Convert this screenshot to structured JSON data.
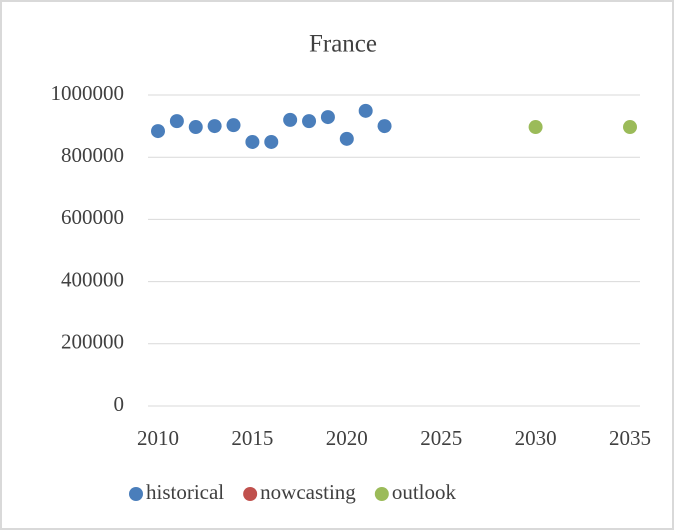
{
  "chart_data": {
    "type": "scatter",
    "title": "France",
    "series": [
      {
        "name": "historical",
        "color": "#4a7ebb",
        "x": [
          2010,
          2011,
          2012,
          2013,
          2014,
          2015,
          2016,
          2017,
          2018,
          2019,
          2020,
          2021,
          2022
        ],
        "values": [
          884000,
          916000,
          897000,
          900000,
          903000,
          849000,
          849000,
          920000,
          916000,
          929000,
          859000,
          949000,
          900000
        ]
      },
      {
        "name": "nowcasting",
        "color": "#c0504d",
        "x": [],
        "values": []
      },
      {
        "name": "outlook",
        "color": "#9bbb59",
        "x": [
          2030,
          2035
        ],
        "values": [
          897000,
          897000
        ]
      }
    ],
    "xlim": [
      2010,
      2035
    ],
    "xticks": [
      2010,
      2015,
      2020,
      2025,
      2030,
      2035
    ],
    "ylim": [
      0,
      1000000
    ],
    "yticks": [
      0,
      200000,
      400000,
      600000,
      800000,
      1000000
    ],
    "grid": true,
    "legend": "bottom"
  }
}
